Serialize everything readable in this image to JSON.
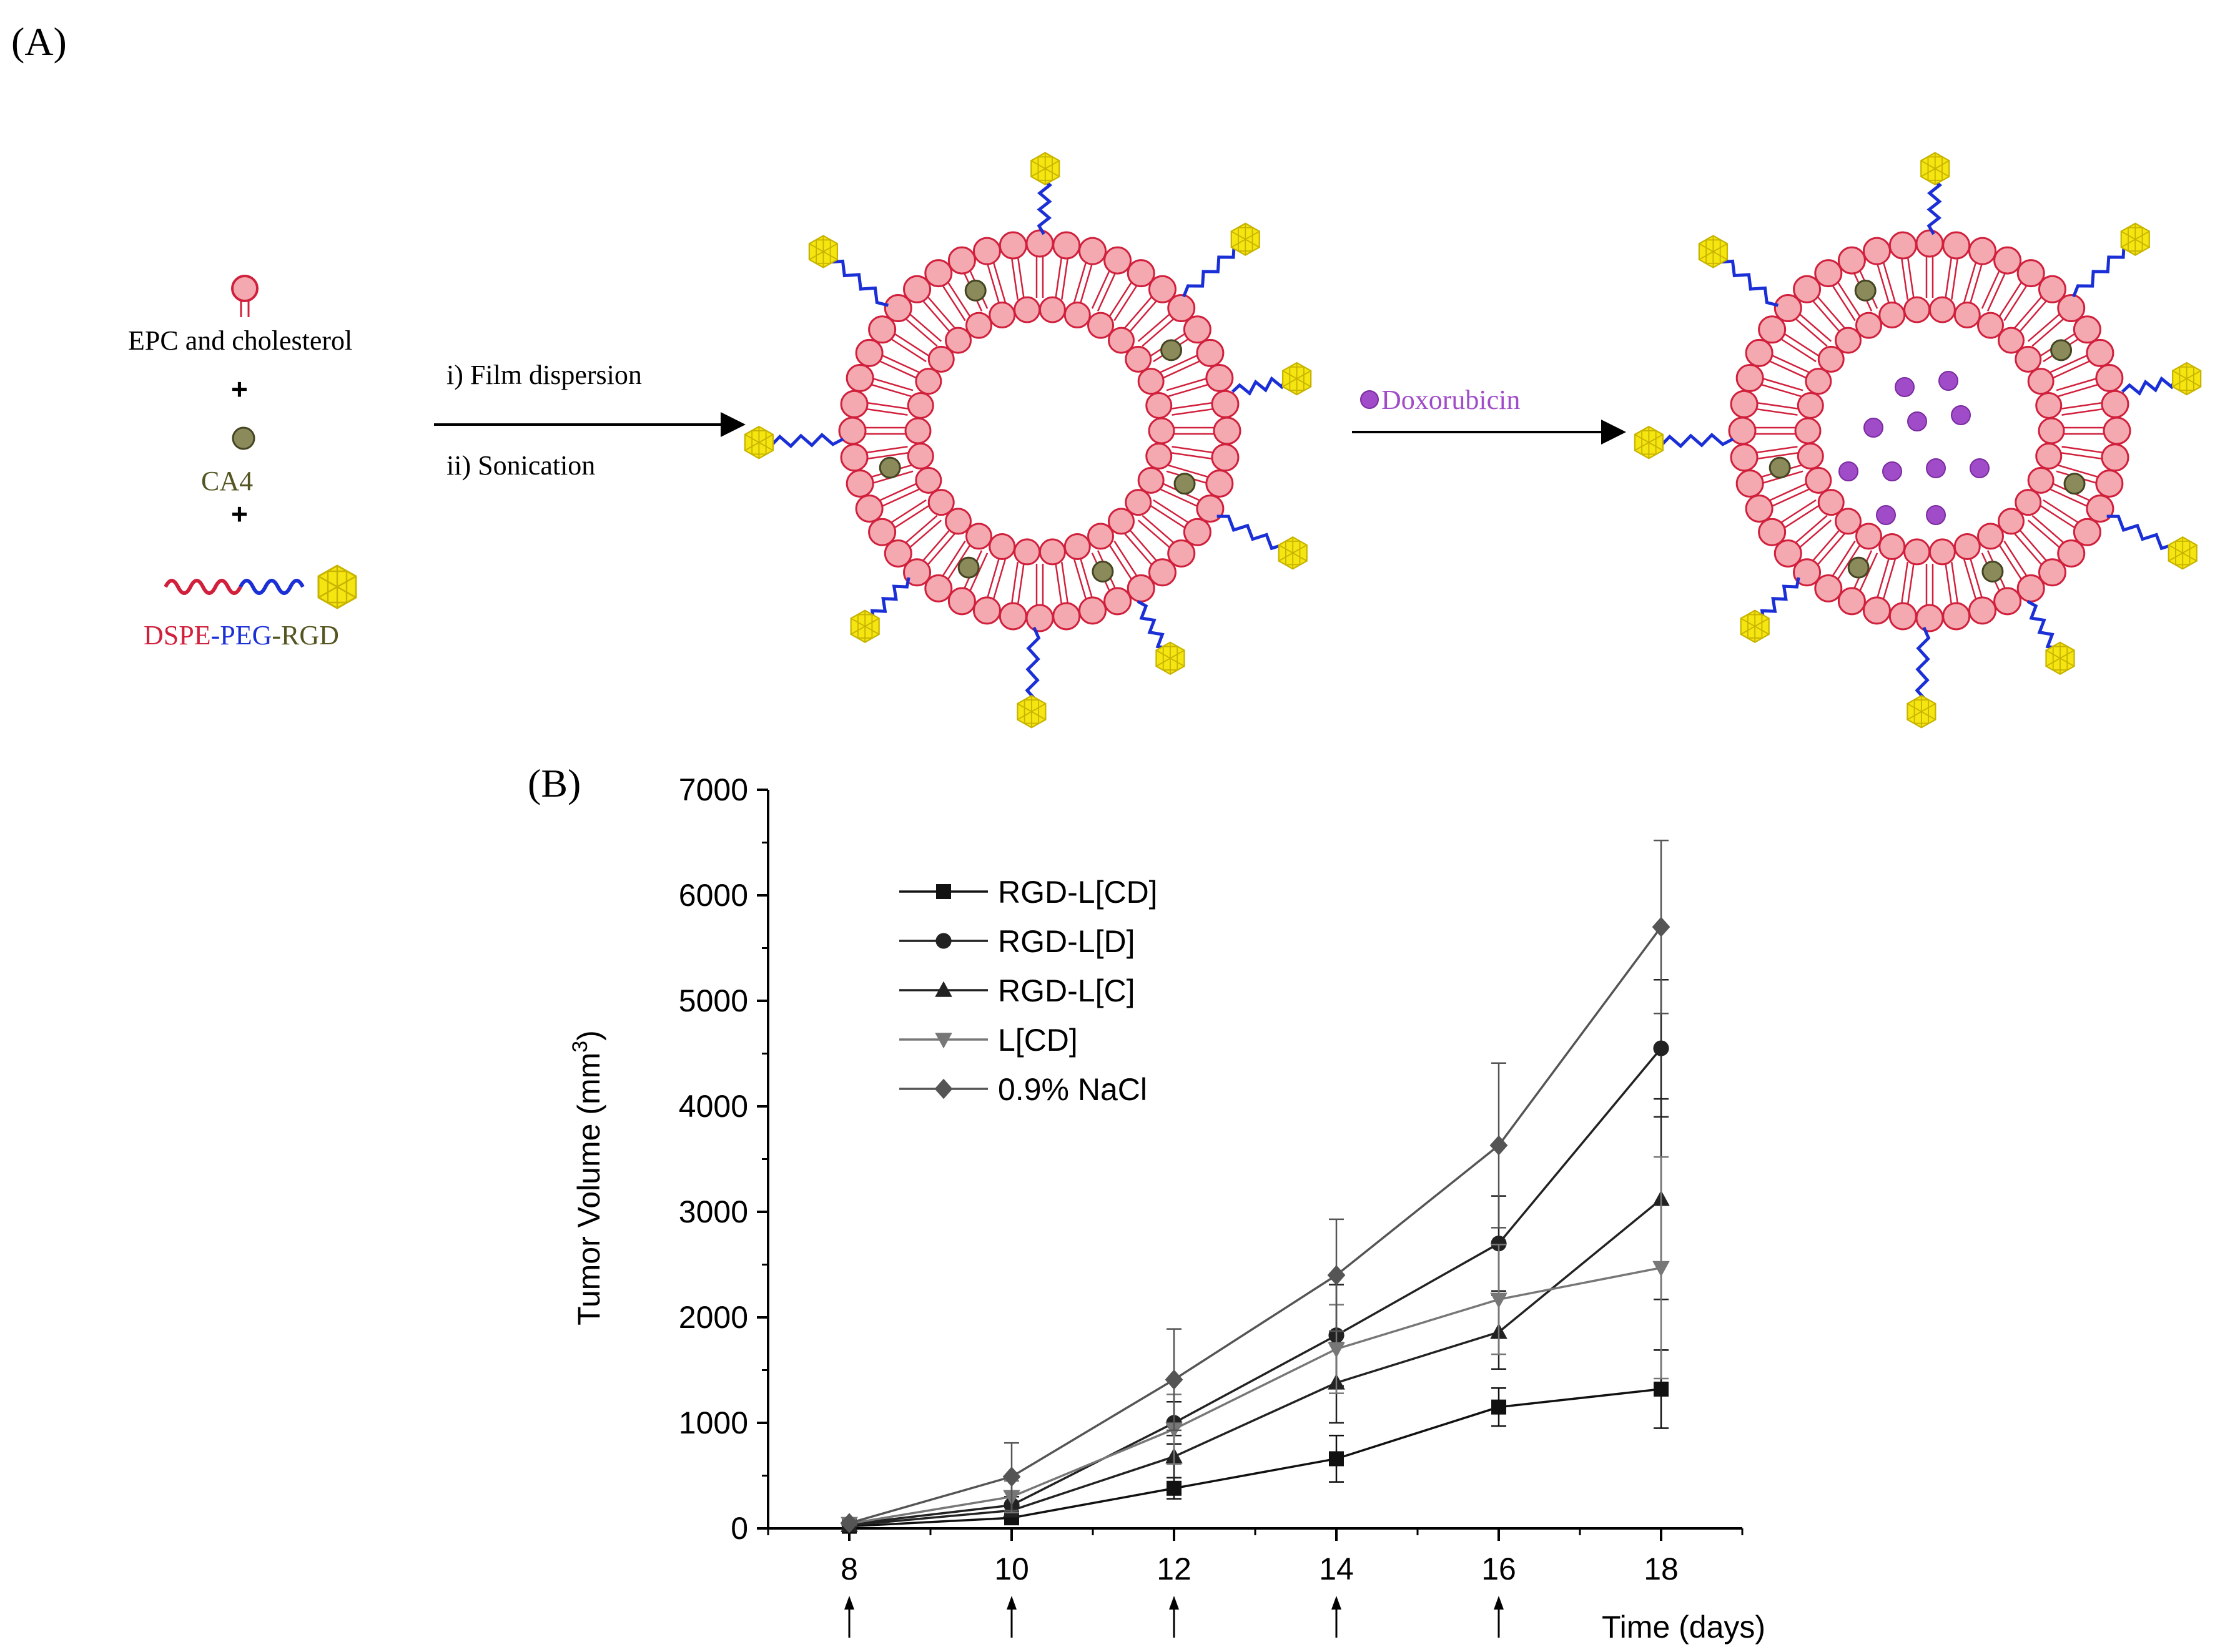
{
  "panel_a": {
    "label": "(A)",
    "reagents": {
      "lipid_label": "EPC and cholesterol",
      "plus": "+",
      "drug_label": "CA4",
      "dspe": "DSPE",
      "dash": "-",
      "peg": "PEG",
      "rgd": "RGD"
    },
    "steps": {
      "step1": "i) Film dispersion",
      "step2": "ii) Sonication",
      "dox": "Doxorubicin"
    },
    "colors": {
      "lipid_head": "#f4a8b0",
      "lipid_stroke": "#d0203c",
      "dspe": "#d0203c",
      "peg": "#1a2fd6",
      "rgd": "#555522",
      "rgd_ligand": "#f5e611",
      "ca4": "#8a8a5a",
      "dox": "#a04cc8"
    }
  },
  "panel_b": {
    "label": "(B)"
  },
  "chart_data": {
    "type": "line",
    "title": "",
    "xlabel": "Time (days)",
    "ylabel": "Tumor Volume (mm",
    "ylabel_sup": "3",
    "ylabel_close": ")",
    "xlim": [
      7,
      19
    ],
    "ylim": [
      0,
      7000
    ],
    "x_ticks": [
      "8",
      "10",
      "12",
      "14",
      "16",
      "18"
    ],
    "y_ticks": [
      "0",
      "1000",
      "2000",
      "3000",
      "4000",
      "5000",
      "6000",
      "7000"
    ],
    "x": [
      8,
      10,
      12,
      14,
      16,
      18
    ],
    "dosing_days": [
      8,
      10,
      12,
      14,
      16
    ],
    "legend_position": "top-left",
    "series": [
      {
        "name": "RGD-L[CD]",
        "marker": "square",
        "color": "#111111",
        "values": [
          20,
          100,
          380,
          660,
          1150,
          1320
        ],
        "errors": [
          10,
          40,
          100,
          220,
          180,
          370
        ]
      },
      {
        "name": "RGD-L[D]",
        "marker": "circle",
        "color": "#222222",
        "values": [
          40,
          220,
          1000,
          1830,
          2700,
          4550
        ],
        "errors": [
          15,
          80,
          200,
          480,
          450,
          650
        ]
      },
      {
        "name": "RGD-L[C]",
        "marker": "triangle-up",
        "color": "#222222",
        "values": [
          30,
          170,
          680,
          1380,
          1860,
          3120
        ],
        "errors": [
          15,
          60,
          200,
          380,
          350,
          950
        ]
      },
      {
        "name": "L[CD]",
        "marker": "triangle-down",
        "color": "#777777",
        "values": [
          45,
          300,
          940,
          1700,
          2170,
          2470
        ],
        "errors": [
          15,
          150,
          330,
          420,
          520,
          1050
        ]
      },
      {
        "name": "0.9% NaCl",
        "marker": "diamond",
        "color": "#555555",
        "values": [
          50,
          490,
          1410,
          2400,
          3630,
          5700
        ],
        "errors": [
          20,
          320,
          480,
          530,
          780,
          820
        ]
      }
    ]
  }
}
